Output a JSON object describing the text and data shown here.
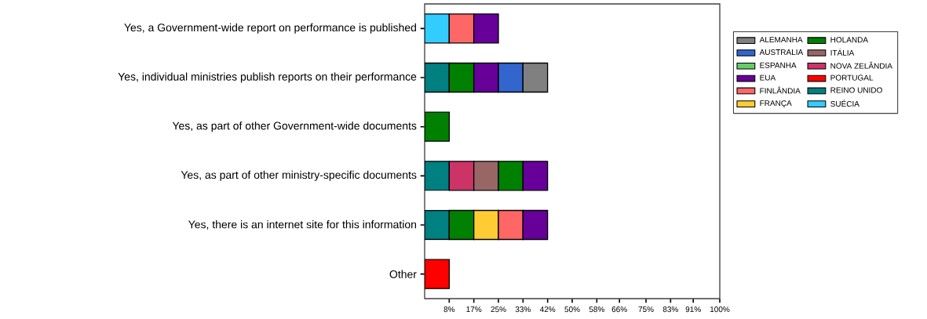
{
  "chart_data": {
    "type": "bar",
    "orientation": "horizontal",
    "stacked": true,
    "categories": [
      "Yes, a Government-wide report on performance is published",
      "Yes, individual ministries publish reports on their performance",
      "Yes, as part of other Government-wide documents",
      "Yes, as part of other ministry-specific documents",
      "Yes, there is an internet site for this information",
      "Other"
    ],
    "series": [
      {
        "name": "SUÉCIA",
        "color": "#33ccff",
        "values": [
          8.33,
          null,
          null,
          null,
          null,
          null
        ]
      },
      {
        "name": "REINO UNIDO",
        "color": "#008080",
        "values": [
          null,
          8.33,
          null,
          8.33,
          8.33,
          null
        ]
      },
      {
        "name": "PORTUGAL",
        "color": "#ff0000",
        "values": [
          null,
          null,
          null,
          null,
          null,
          8.33
        ]
      },
      {
        "name": "NOVA ZELÂNDIA",
        "color": "#cc3366",
        "values": [
          null,
          null,
          null,
          8.33,
          null,
          null
        ]
      },
      {
        "name": "ITÁLIA",
        "color": "#996666",
        "values": [
          null,
          null,
          null,
          8.33,
          null,
          null
        ]
      },
      {
        "name": "HOLANDA",
        "color": "#008000",
        "values": [
          null,
          8.33,
          8.33,
          8.33,
          8.33,
          null
        ]
      },
      {
        "name": "FRANÇA",
        "color": "#ffcc33",
        "values": [
          null,
          null,
          null,
          null,
          8.33,
          null
        ]
      },
      {
        "name": "FINLÂNDIA",
        "color": "#ff6666",
        "values": [
          8.33,
          null,
          null,
          null,
          8.33,
          null
        ]
      },
      {
        "name": "EUA",
        "color": "#660099",
        "values": [
          8.33,
          8.33,
          null,
          8.33,
          8.33,
          null
        ]
      },
      {
        "name": "ESPANHA",
        "color": "#66cc66",
        "values": [
          null,
          null,
          null,
          null,
          null,
          null
        ]
      },
      {
        "name": "AUSTRALIA",
        "color": "#3366cc",
        "values": [
          null,
          8.33,
          null,
          null,
          null,
          null
        ]
      },
      {
        "name": "ALEMANHA",
        "color": "#808080",
        "values": [
          null,
          8.33,
          null,
          null,
          null,
          null
        ]
      }
    ],
    "xlim": [
      0,
      100
    ],
    "xticks": [
      {
        "value": 8.33,
        "label": "8%"
      },
      {
        "value": 16.67,
        "label": "17%"
      },
      {
        "value": 25,
        "label": "25%"
      },
      {
        "value": 33.33,
        "label": "33%"
      },
      {
        "value": 41.67,
        "label": "42%"
      },
      {
        "value": 50,
        "label": "50%"
      },
      {
        "value": 58.33,
        "label": "58%"
      },
      {
        "value": 66,
        "label": "66%"
      },
      {
        "value": 75,
        "label": "75%"
      },
      {
        "value": 83.33,
        "label": "83%"
      },
      {
        "value": 91,
        "label": "91%"
      },
      {
        "value": 100,
        "label": "100%"
      }
    ],
    "grid": false,
    "legend": "right"
  }
}
